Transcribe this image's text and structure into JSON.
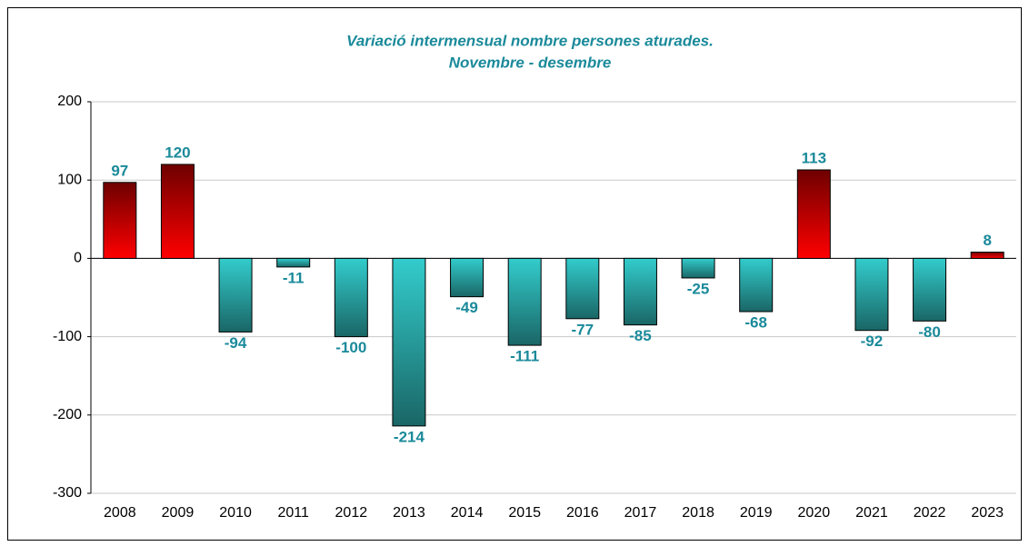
{
  "chart_data": {
    "type": "bar",
    "title": "Variació intermensual nombre persones aturades.",
    "subtitle": "Novembre - desembre",
    "categories": [
      "2008",
      "2009",
      "2010",
      "2011",
      "2012",
      "2013",
      "2014",
      "2015",
      "2016",
      "2017",
      "2018",
      "2019",
      "2020",
      "2021",
      "2022",
      "2023"
    ],
    "values": [
      97,
      120,
      -94,
      -11,
      -100,
      -214,
      -49,
      -111,
      -77,
      -85,
      -25,
      -68,
      113,
      -92,
      -80,
      8
    ],
    "colors": {
      "positive": [
        "#6e0000",
        "#ff0000"
      ],
      "negative": [
        "#33cccc",
        "#1a6666"
      ]
    },
    "ylim": [
      -300,
      200
    ],
    "yticks": [
      -300,
      -200,
      -100,
      0,
      100,
      200
    ],
    "grid": true
  }
}
